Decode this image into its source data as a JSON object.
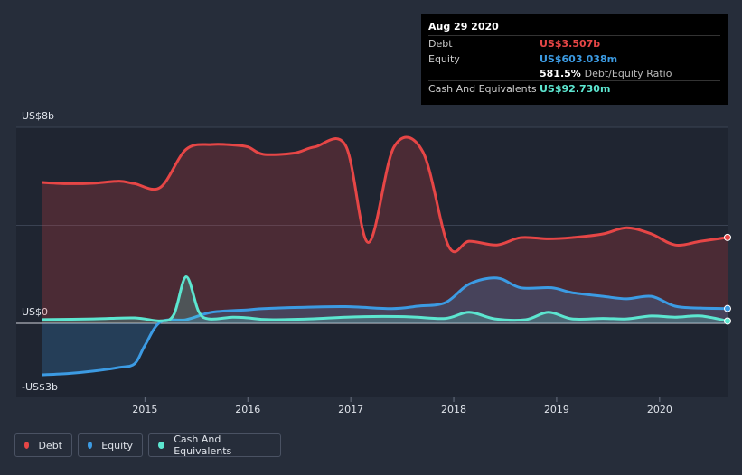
{
  "tooltip": {
    "date": "Aug 29 2020",
    "rows": [
      {
        "label": "Debt",
        "value": "US$3.507b",
        "color": "#e64646"
      },
      {
        "label": "Equity",
        "value": "US$603.038m",
        "color": "#3c9be3"
      },
      {
        "label": "",
        "value": "581.5%",
        "sub": "Debt/Equity Ratio",
        "color": "#ffffff"
      },
      {
        "label": "Cash And Equivalents",
        "value": "US$92.730m",
        "color": "#5ce6d0"
      }
    ]
  },
  "legend": [
    {
      "label": "Debt",
      "color": "#e64646"
    },
    {
      "label": "Equity",
      "color": "#3c9be3"
    },
    {
      "label": "Cash And Equivalents",
      "color": "#5ce6d0"
    }
  ],
  "chart_data": {
    "type": "area",
    "y_labels": [
      "US$8b",
      "US$0",
      "-US$3b"
    ],
    "ylim": [
      -3,
      8
    ],
    "x_ticks": [
      {
        "label": "2015",
        "x": 2015.0
      },
      {
        "label": "2016",
        "x": 2016.0
      },
      {
        "label": "2017",
        "x": 2017.0
      },
      {
        "label": "2018",
        "x": 2018.0
      },
      {
        "label": "2019",
        "x": 2019.0
      },
      {
        "label": "2020",
        "x": 2020.0
      }
    ],
    "xlim": [
      2013.75,
      2020.66
    ],
    "series": [
      {
        "name": "Debt",
        "color": "#e64646",
        "points": [
          [
            2014.0,
            5.75
          ],
          [
            2014.25,
            5.7
          ],
          [
            2014.5,
            5.72
          ],
          [
            2014.75,
            5.8
          ],
          [
            2014.9,
            5.7
          ],
          [
            2015.15,
            5.55
          ],
          [
            2015.4,
            7.1
          ],
          [
            2015.65,
            7.3
          ],
          [
            2015.85,
            7.28
          ],
          [
            2016.0,
            7.2
          ],
          [
            2016.15,
            6.9
          ],
          [
            2016.45,
            6.95
          ],
          [
            2016.65,
            7.2
          ],
          [
            2016.95,
            7.25
          ],
          [
            2017.17,
            3.3
          ],
          [
            2017.42,
            7.2
          ],
          [
            2017.7,
            7.0
          ],
          [
            2017.95,
            3.15
          ],
          [
            2018.15,
            3.35
          ],
          [
            2018.42,
            3.2
          ],
          [
            2018.65,
            3.5
          ],
          [
            2018.92,
            3.45
          ],
          [
            2019.15,
            3.5
          ],
          [
            2019.45,
            3.65
          ],
          [
            2019.68,
            3.9
          ],
          [
            2019.92,
            3.65
          ],
          [
            2020.15,
            3.2
          ],
          [
            2020.4,
            3.35
          ],
          [
            2020.66,
            3.507
          ]
        ]
      },
      {
        "name": "Equity",
        "color": "#3c9be3",
        "points": [
          [
            2014.0,
            -2.1
          ],
          [
            2014.25,
            -2.05
          ],
          [
            2014.5,
            -1.95
          ],
          [
            2014.75,
            -1.8
          ],
          [
            2014.9,
            -1.65
          ],
          [
            2015.0,
            -0.9
          ],
          [
            2015.15,
            0.05
          ],
          [
            2015.4,
            0.15
          ],
          [
            2015.65,
            0.45
          ],
          [
            2016.0,
            0.55
          ],
          [
            2016.15,
            0.6
          ],
          [
            2016.5,
            0.65
          ],
          [
            2016.95,
            0.68
          ],
          [
            2017.4,
            0.6
          ],
          [
            2017.65,
            0.7
          ],
          [
            2017.92,
            0.85
          ],
          [
            2018.15,
            1.6
          ],
          [
            2018.42,
            1.85
          ],
          [
            2018.65,
            1.45
          ],
          [
            2018.95,
            1.45
          ],
          [
            2019.15,
            1.25
          ],
          [
            2019.45,
            1.1
          ],
          [
            2019.68,
            1.0
          ],
          [
            2019.92,
            1.1
          ],
          [
            2020.15,
            0.7
          ],
          [
            2020.4,
            0.62
          ],
          [
            2020.66,
            0.603
          ]
        ]
      },
      {
        "name": "Cash And Equivalents",
        "color": "#5ce6d0",
        "points": [
          [
            2014.0,
            0.15
          ],
          [
            2014.5,
            0.18
          ],
          [
            2014.9,
            0.22
          ],
          [
            2015.15,
            0.1
          ],
          [
            2015.28,
            0.35
          ],
          [
            2015.4,
            1.9
          ],
          [
            2015.52,
            0.5
          ],
          [
            2015.62,
            0.18
          ],
          [
            2015.85,
            0.25
          ],
          [
            2016.0,
            0.22
          ],
          [
            2016.2,
            0.15
          ],
          [
            2016.6,
            0.18
          ],
          [
            2016.95,
            0.25
          ],
          [
            2017.3,
            0.28
          ],
          [
            2017.6,
            0.26
          ],
          [
            2017.92,
            0.2
          ],
          [
            2018.15,
            0.45
          ],
          [
            2018.4,
            0.18
          ],
          [
            2018.7,
            0.15
          ],
          [
            2018.92,
            0.45
          ],
          [
            2019.15,
            0.18
          ],
          [
            2019.45,
            0.2
          ],
          [
            2019.68,
            0.18
          ],
          [
            2019.92,
            0.3
          ],
          [
            2020.15,
            0.25
          ],
          [
            2020.4,
            0.3
          ],
          [
            2020.66,
            0.093
          ]
        ]
      }
    ]
  }
}
